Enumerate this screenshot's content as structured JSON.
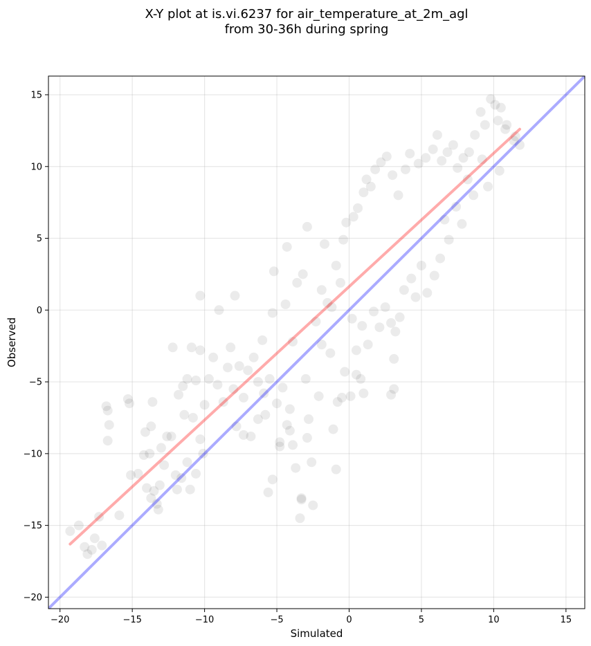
{
  "chart_data": {
    "type": "scatter",
    "title_line1": "X-Y plot at is.vi.6237 for air_temperature_at_2m_agl",
    "title_line2": "from 30-36h during spring",
    "xlabel": "Simulated",
    "ylabel": "Observed",
    "xlim": [
      -20.8,
      16.3
    ],
    "ylim": [
      -20.8,
      16.3
    ],
    "xticks": [
      -20,
      -15,
      -10,
      -5,
      0,
      5,
      10,
      15
    ],
    "yticks": [
      -20,
      -15,
      -10,
      -5,
      0,
      5,
      10,
      15
    ],
    "xtick_labels": [
      "−20",
      "−15",
      "−10",
      "−5",
      "0",
      "5",
      "10",
      "15"
    ],
    "ytick_labels": [
      "−20",
      "−15",
      "−10",
      "−5",
      "0",
      "5",
      "10",
      "15"
    ],
    "grid": true,
    "point_color": "#000000",
    "point_alpha": 0.08,
    "reference_line": {
      "color": "#0000ff",
      "alpha": 0.33,
      "points": [
        [
          -20.8,
          -20.8
        ],
        [
          16.3,
          16.3
        ]
      ]
    },
    "fit_line": {
      "color": "#ff0000",
      "alpha": 0.33,
      "points": [
        [
          -19.3,
          -16.3
        ],
        [
          11.8,
          12.6
        ]
      ]
    },
    "points": [
      [
        -19.3,
        -15.4
      ],
      [
        -18.7,
        -15.0
      ],
      [
        -18.3,
        -16.5
      ],
      [
        -18.1,
        -17.0
      ],
      [
        -17.8,
        -16.7
      ],
      [
        -17.6,
        -15.9
      ],
      [
        -17.3,
        -14.4
      ],
      [
        -17.1,
        -16.4
      ],
      [
        -16.8,
        -6.7
      ],
      [
        -16.7,
        -7.0
      ],
      [
        -16.6,
        -8.0
      ],
      [
        -16.7,
        -9.1
      ],
      [
        -15.9,
        -14.3
      ],
      [
        -15.3,
        -6.2
      ],
      [
        -15.2,
        -6.5
      ],
      [
        -15.1,
        -11.5
      ],
      [
        -14.6,
        -11.4
      ],
      [
        -14.2,
        -10.1
      ],
      [
        -14.1,
        -8.5
      ],
      [
        -14.0,
        -12.4
      ],
      [
        -13.8,
        -10.0
      ],
      [
        -13.7,
        -8.1
      ],
      [
        -13.7,
        -13.1
      ],
      [
        -13.6,
        -6.4
      ],
      [
        -13.5,
        -12.6
      ],
      [
        -13.3,
        -13.5
      ],
      [
        -13.2,
        -13.9
      ],
      [
        -13.1,
        -12.2
      ],
      [
        -13.0,
        -9.6
      ],
      [
        -12.8,
        -10.8
      ],
      [
        -12.6,
        -8.8
      ],
      [
        -12.3,
        -8.8
      ],
      [
        -12.0,
        -11.5
      ],
      [
        -11.9,
        -12.5
      ],
      [
        -11.6,
        -11.7
      ],
      [
        -11.4,
        -7.3
      ],
      [
        -11.2,
        -10.6
      ],
      [
        -11.0,
        -12.5
      ],
      [
        -10.8,
        -7.5
      ],
      [
        -10.6,
        -11.4
      ],
      [
        -10.3,
        -9.0
      ],
      [
        -10.1,
        -10.0
      ],
      [
        -12.2,
        -2.6
      ],
      [
        -11.8,
        -5.9
      ],
      [
        -11.5,
        -5.3
      ],
      [
        -11.2,
        -4.8
      ],
      [
        -10.9,
        -2.6
      ],
      [
        -10.6,
        -4.9
      ],
      [
        -10.3,
        -2.8
      ],
      [
        -10.3,
        1.0
      ],
      [
        -10.0,
        -6.6
      ],
      [
        -9.7,
        -4.8
      ],
      [
        -9.4,
        -3.3
      ],
      [
        -9.1,
        -5.2
      ],
      [
        -9.0,
        0.0
      ],
      [
        -8.7,
        -6.4
      ],
      [
        -8.4,
        -4.0
      ],
      [
        -8.2,
        -2.6
      ],
      [
        -8.0,
        -5.5
      ],
      [
        -7.9,
        1.0
      ],
      [
        -7.8,
        -8.1
      ],
      [
        -7.6,
        -3.9
      ],
      [
        -7.3,
        -6.1
      ],
      [
        -7.0,
        -4.2
      ],
      [
        -6.8,
        -8.8
      ],
      [
        -6.6,
        -3.3
      ],
      [
        -6.3,
        -5.0
      ],
      [
        -6.0,
        -2.1
      ],
      [
        -5.8,
        -7.3
      ],
      [
        -5.5,
        -4.8
      ],
      [
        -5.3,
        -0.2
      ],
      [
        -5.2,
        2.7
      ],
      [
        -5.0,
        -6.5
      ],
      [
        -4.8,
        -9.2
      ],
      [
        -4.6,
        -5.4
      ],
      [
        -4.4,
        0.4
      ],
      [
        -4.3,
        4.4
      ],
      [
        -4.1,
        -8.4
      ],
      [
        -3.9,
        -2.2
      ],
      [
        -3.7,
        -11.0
      ],
      [
        -3.6,
        1.9
      ],
      [
        -3.4,
        -14.5
      ],
      [
        -3.3,
        -13.2
      ],
      [
        -3.2,
        2.5
      ],
      [
        -3.0,
        -4.8
      ],
      [
        -2.8,
        -7.6
      ],
      [
        -2.6,
        -10.6
      ],
      [
        -2.5,
        -13.6
      ],
      [
        -2.3,
        -0.8
      ],
      [
        -2.1,
        -6.0
      ],
      [
        -1.9,
        -2.4
      ],
      [
        -1.7,
        4.6
      ],
      [
        -1.5,
        0.5
      ],
      [
        -1.3,
        -3.0
      ],
      [
        -1.1,
        -8.3
      ],
      [
        -0.9,
        -11.1
      ],
      [
        -0.8,
        -6.4
      ],
      [
        -0.5,
        -6.1
      ],
      [
        -0.3,
        -4.3
      ],
      [
        0.1,
        -6.0
      ],
      [
        0.5,
        -4.5
      ],
      [
        0.8,
        -4.8
      ],
      [
        1.0,
        -5.8
      ],
      [
        -3.3,
        -13.1
      ],
      [
        -5.6,
        -12.7
      ],
      [
        -5.3,
        -11.8
      ],
      [
        -4.3,
        -8.0
      ],
      [
        -4.8,
        -9.5
      ],
      [
        -6.3,
        -7.6
      ],
      [
        -7.3,
        -8.7
      ],
      [
        -5.9,
        -5.8
      ],
      [
        -4.1,
        -6.9
      ],
      [
        -3.9,
        -9.4
      ],
      [
        -2.9,
        -8.9
      ],
      [
        -1.2,
        0.2
      ],
      [
        -1.9,
        1.4
      ],
      [
        -0.6,
        1.9
      ],
      [
        -0.9,
        3.1
      ],
      [
        -0.4,
        4.9
      ],
      [
        -0.2,
        6.1
      ],
      [
        -2.9,
        5.8
      ],
      [
        0.3,
        6.5
      ],
      [
        0.6,
        7.1
      ],
      [
        1.0,
        8.2
      ],
      [
        1.2,
        9.1
      ],
      [
        1.5,
        8.6
      ],
      [
        1.8,
        9.8
      ],
      [
        2.2,
        10.3
      ],
      [
        2.6,
        10.7
      ],
      [
        3.0,
        9.4
      ],
      [
        3.4,
        8.0
      ],
      [
        3.9,
        9.8
      ],
      [
        4.2,
        10.9
      ],
      [
        4.8,
        10.2
      ],
      [
        5.3,
        10.6
      ],
      [
        5.8,
        11.2
      ],
      [
        6.1,
        12.2
      ],
      [
        6.4,
        10.4
      ],
      [
        6.8,
        11.0
      ],
      [
        7.2,
        11.5
      ],
      [
        7.5,
        9.9
      ],
      [
        7.9,
        10.6
      ],
      [
        8.3,
        11.0
      ],
      [
        8.7,
        12.2
      ],
      [
        9.1,
        13.8
      ],
      [
        9.4,
        12.9
      ],
      [
        9.8,
        14.7
      ],
      [
        10.1,
        14.3
      ],
      [
        10.3,
        13.2
      ],
      [
        10.5,
        14.1
      ],
      [
        10.8,
        12.6
      ],
      [
        11.4,
        11.8
      ],
      [
        11.8,
        11.5
      ],
      [
        11.5,
        12.1
      ],
      [
        10.9,
        12.9
      ],
      [
        10.4,
        9.7
      ],
      [
        9.6,
        8.6
      ],
      [
        9.2,
        10.5
      ],
      [
        8.6,
        8.0
      ],
      [
        8.2,
        9.1
      ],
      [
        7.8,
        6.0
      ],
      [
        7.4,
        7.2
      ],
      [
        6.9,
        4.9
      ],
      [
        6.6,
        6.3
      ],
      [
        6.3,
        3.6
      ],
      [
        5.9,
        2.4
      ],
      [
        5.4,
        1.2
      ],
      [
        5.0,
        3.1
      ],
      [
        4.6,
        0.9
      ],
      [
        4.3,
        2.2
      ],
      [
        3.8,
        1.4
      ],
      [
        3.5,
        -0.5
      ],
      [
        3.2,
        -1.5
      ],
      [
        3.1,
        -3.4
      ],
      [
        2.9,
        -0.9
      ],
      [
        2.5,
        0.2
      ],
      [
        2.1,
        -1.2
      ],
      [
        1.7,
        -0.1
      ],
      [
        1.3,
        -2.4
      ],
      [
        0.9,
        -1.1
      ],
      [
        0.5,
        -2.8
      ],
      [
        0.2,
        -0.6
      ],
      [
        3.1,
        -5.5
      ],
      [
        2.9,
        -5.9
      ]
    ]
  }
}
